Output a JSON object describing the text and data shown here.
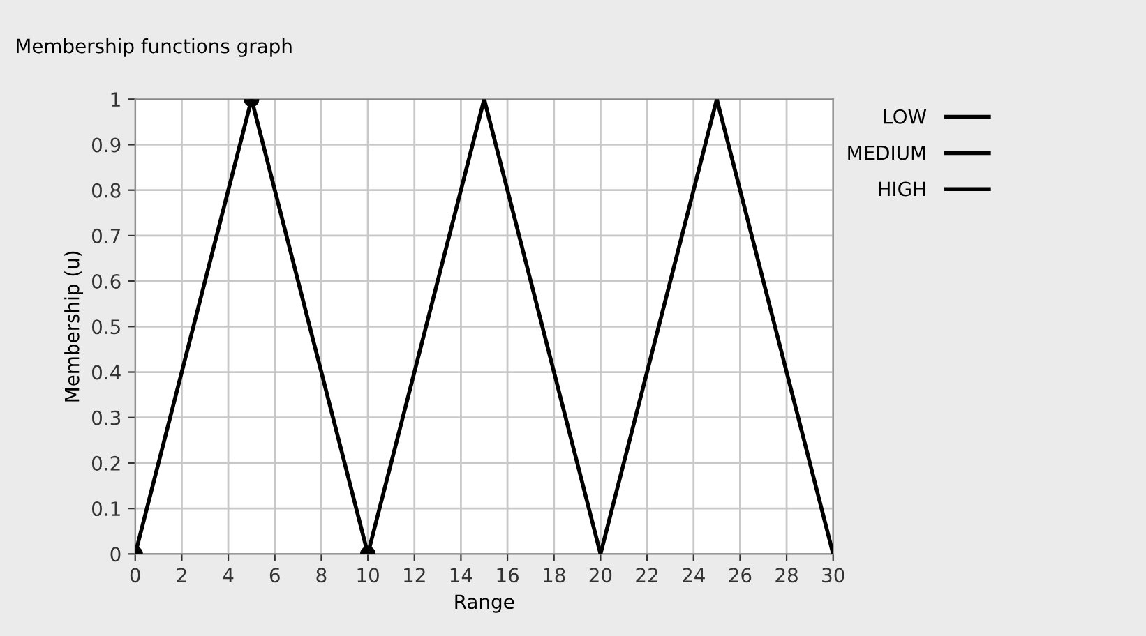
{
  "chart_data": {
    "type": "line",
    "title": "Membership functions graph",
    "xlabel": "Range",
    "ylabel": "Membership (u)",
    "xlim": [
      0,
      30
    ],
    "xticks": [
      0,
      2,
      4,
      6,
      8,
      10,
      12,
      14,
      16,
      18,
      20,
      22,
      24,
      26,
      28,
      30
    ],
    "ylim": [
      0,
      1
    ],
    "yticks": [
      0,
      0.1,
      0.2,
      0.3,
      0.4,
      0.5,
      0.6,
      0.7,
      0.8,
      0.9,
      1
    ],
    "grid": true,
    "legend": "right",
    "line_style": "solid",
    "series": [
      {
        "name": "LOW",
        "color": "#000000",
        "x": [
          0,
          5,
          10
        ],
        "values": [
          0,
          1,
          0
        ],
        "marker": "circle"
      },
      {
        "name": "MEDIUM",
        "color": "#000000",
        "x": [
          10,
          15,
          20
        ],
        "values": [
          0,
          1,
          0
        ]
      },
      {
        "name": "HIGH",
        "color": "#000000",
        "x": [
          20,
          25,
          30
        ],
        "values": [
          0,
          1,
          0
        ]
      }
    ]
  }
}
